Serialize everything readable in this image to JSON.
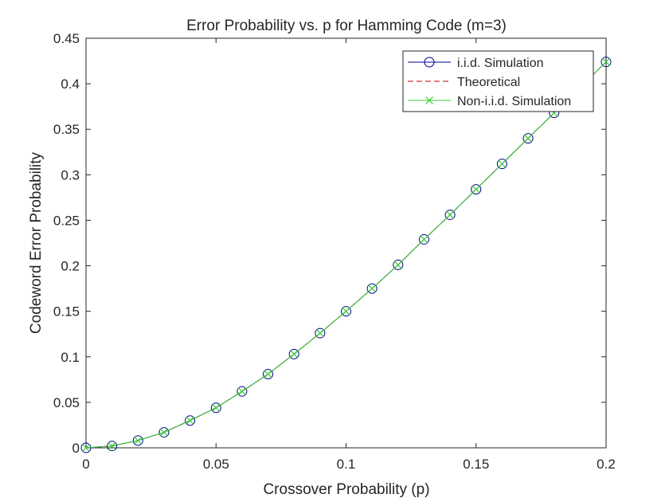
{
  "chart_data": {
    "type": "line",
    "title": "Error Probability vs. p for Hamming Code (m=3)",
    "xlabel": "Crossover Probability (p)",
    "ylabel": "Codeword Error Probability",
    "xlim": [
      0,
      0.2
    ],
    "ylim": [
      0,
      0.45
    ],
    "xticks": [
      "0",
      "0.05",
      "0.1",
      "0.15",
      "0.2"
    ],
    "yticks": [
      "0",
      "0.05",
      "0.1",
      "0.15",
      "0.2",
      "0.25",
      "0.3",
      "0.35",
      "0.4",
      "0.45"
    ],
    "grid": false,
    "legend_position": "top-right",
    "x": [
      0,
      0.01,
      0.02,
      0.03,
      0.04,
      0.05,
      0.06,
      0.07,
      0.08,
      0.09,
      0.1,
      0.11,
      0.12,
      0.13,
      0.14,
      0.15,
      0.16,
      0.17,
      0.18,
      0.19,
      0.2
    ],
    "series": [
      {
        "name": "i.i.d. Simulation",
        "color": "#00008b",
        "marker": "circle",
        "line": "solid",
        "values": [
          0,
          0.002,
          0.008,
          0.017,
          0.03,
          0.044,
          0.062,
          0.081,
          0.103,
          0.126,
          0.15,
          0.175,
          0.201,
          0.229,
          0.256,
          0.284,
          0.312,
          0.34,
          0.368,
          0.396,
          0.424
        ]
      },
      {
        "name": "Theoretical",
        "color": "#c00000",
        "marker": "none",
        "line": "dashed",
        "values": [
          0,
          0.002,
          0.008,
          0.017,
          0.03,
          0.044,
          0.062,
          0.081,
          0.103,
          0.126,
          0.15,
          0.175,
          0.201,
          0.229,
          0.256,
          0.284,
          0.312,
          0.34,
          0.368,
          0.396,
          0.424
        ]
      },
      {
        "name": "Non-i.i.d. Simulation",
        "color": "#33cc33",
        "marker": "x",
        "line": "solid",
        "values": [
          0,
          0.002,
          0.008,
          0.017,
          0.03,
          0.044,
          0.062,
          0.081,
          0.103,
          0.126,
          0.15,
          0.175,
          0.201,
          0.229,
          0.256,
          0.284,
          0.312,
          0.34,
          0.368,
          0.396,
          0.424
        ]
      }
    ]
  }
}
